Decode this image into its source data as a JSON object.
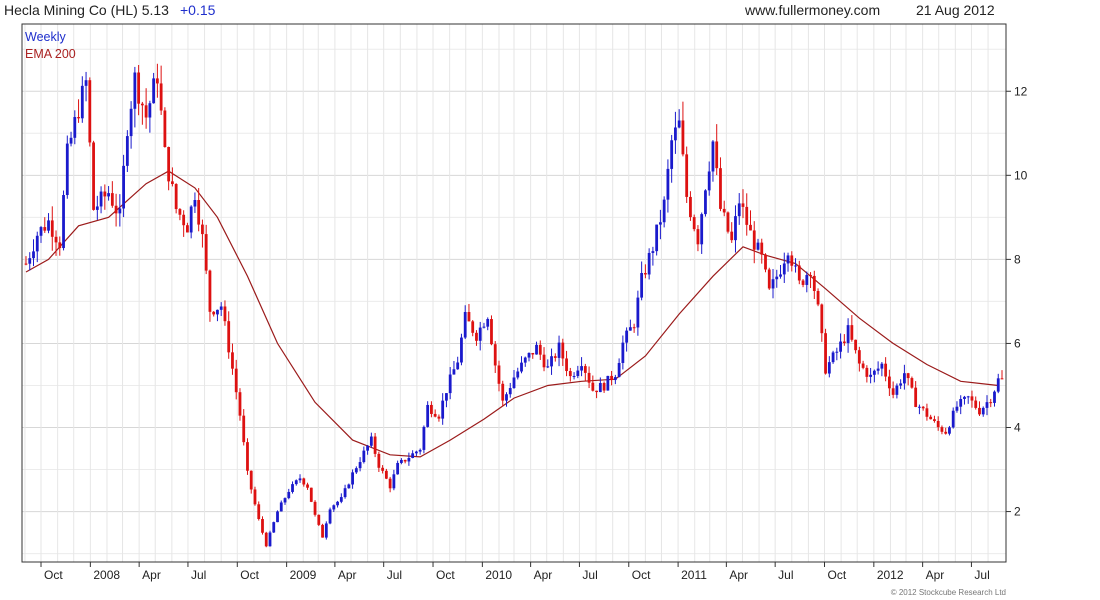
{
  "header": {
    "title": "Hecla Mining Co (HL) 5.13",
    "change": "+0.15",
    "site": "www.fullermoney.com",
    "date": "21 Aug 2012"
  },
  "legend": {
    "series1": "Weekly",
    "series2": "EMA 200"
  },
  "footer": {
    "copyright": "© 2012 Stockcube Research Ltd"
  },
  "colors": {
    "up": "#1a1acc",
    "down": "#dd1111",
    "ema": "#9b1b1b",
    "grid": "#d7d7d7",
    "legend_weekly": "#1f2fcc",
    "legend_ema": "#aa2222"
  },
  "chart_data": {
    "type": "candlestick",
    "frequency": "weekly",
    "ylim": [
      0.8,
      13.6
    ],
    "y_ticks": [
      2,
      4,
      6,
      8,
      10,
      12
    ],
    "y_axis_side": "right",
    "grid": true,
    "legend_placement": "top-left",
    "x_tick_labels": [
      "Oct",
      "2008",
      "Apr",
      "Jul",
      "Oct",
      "2009",
      "Apr",
      "Jul",
      "Oct",
      "2010",
      "Apr",
      "Jul",
      "Oct",
      "2011",
      "Apr",
      "Jul",
      "Oct",
      "2012",
      "Apr",
      "Jul"
    ],
    "x_tick_dates": [
      "2007-10-01",
      "2008-01-01",
      "2008-04-01",
      "2008-07-01",
      "2008-10-01",
      "2009-01-01",
      "2009-04-01",
      "2009-07-01",
      "2009-10-01",
      "2010-01-01",
      "2010-04-01",
      "2010-07-01",
      "2010-10-01",
      "2011-01-01",
      "2011-04-01",
      "2011-07-01",
      "2011-10-01",
      "2012-01-01",
      "2012-04-01",
      "2012-07-01"
    ],
    "x_range": [
      "2007-09-03",
      "2012-08-27"
    ],
    "price_path": [
      [
        "2007-09-03",
        7.9
      ],
      [
        "2007-09-24",
        8.6
      ],
      [
        "2007-10-15",
        8.9
      ],
      [
        "2007-11-05",
        8.4
      ],
      [
        "2007-11-19",
        10.5
      ],
      [
        "2007-12-10",
        11.6
      ],
      [
        "2007-12-24",
        12.2
      ],
      [
        "2008-01-07",
        9.2
      ],
      [
        "2008-02-04",
        9.6
      ],
      [
        "2008-02-25",
        9.0
      ],
      [
        "2008-03-10",
        11.2
      ],
      [
        "2008-03-24",
        12.3
      ],
      [
        "2008-04-14",
        11.4
      ],
      [
        "2008-05-05",
        12.4
      ],
      [
        "2008-05-19",
        10.5
      ],
      [
        "2008-06-09",
        9.2
      ],
      [
        "2008-06-30",
        8.8
      ],
      [
        "2008-07-14",
        9.6
      ],
      [
        "2008-07-28",
        8.5
      ],
      [
        "2008-08-11",
        6.8
      ],
      [
        "2008-09-01",
        6.9
      ],
      [
        "2008-09-22",
        5.4
      ],
      [
        "2008-10-06",
        4.3
      ],
      [
        "2008-10-20",
        2.9
      ],
      [
        "2008-11-10",
        1.8
      ],
      [
        "2008-11-24",
        1.2
      ],
      [
        "2008-12-15",
        2.0
      ],
      [
        "2009-01-05",
        2.5
      ],
      [
        "2009-01-26",
        2.8
      ],
      [
        "2009-02-09",
        2.6
      ],
      [
        "2009-02-23",
        1.9
      ],
      [
        "2009-03-09",
        1.4
      ],
      [
        "2009-03-23",
        2.1
      ],
      [
        "2009-04-13",
        2.3
      ],
      [
        "2009-05-04",
        2.9
      ],
      [
        "2009-05-25",
        3.4
      ],
      [
        "2009-06-08",
        3.7
      ],
      [
        "2009-06-22",
        3.1
      ],
      [
        "2009-07-13",
        2.6
      ],
      [
        "2009-07-27",
        3.1
      ],
      [
        "2009-08-17",
        3.3
      ],
      [
        "2009-09-07",
        3.5
      ],
      [
        "2009-09-21",
        4.5
      ],
      [
        "2009-10-12",
        4.3
      ],
      [
        "2009-10-26",
        4.9
      ],
      [
        "2009-11-16",
        5.6
      ],
      [
        "2009-11-30",
        6.6
      ],
      [
        "2009-12-21",
        6.2
      ],
      [
        "2010-01-11",
        6.7
      ],
      [
        "2010-01-25",
        5.5
      ],
      [
        "2010-02-08",
        4.6
      ],
      [
        "2010-03-01",
        5.2
      ],
      [
        "2010-03-22",
        5.6
      ],
      [
        "2010-04-12",
        5.9
      ],
      [
        "2010-05-03",
        5.4
      ],
      [
        "2010-05-24",
        5.9
      ],
      [
        "2010-06-14",
        5.2
      ],
      [
        "2010-07-05",
        5.6
      ],
      [
        "2010-07-26",
        4.9
      ],
      [
        "2010-08-16",
        5.0
      ],
      [
        "2010-09-06",
        5.3
      ],
      [
        "2010-09-20",
        6.0
      ],
      [
        "2010-10-11",
        6.5
      ],
      [
        "2010-10-25",
        7.5
      ],
      [
        "2010-11-15",
        8.3
      ],
      [
        "2010-12-06",
        9.3
      ],
      [
        "2010-12-20",
        10.8
      ],
      [
        "2011-01-03",
        11.2
      ],
      [
        "2011-01-17",
        9.5
      ],
      [
        "2011-02-07",
        8.5
      ],
      [
        "2011-02-21",
        9.8
      ],
      [
        "2011-03-07",
        10.8
      ],
      [
        "2011-03-21",
        9.2
      ],
      [
        "2011-04-11",
        8.4
      ],
      [
        "2011-04-25",
        9.4
      ],
      [
        "2011-05-16",
        8.6
      ],
      [
        "2011-06-06",
        8.0
      ],
      [
        "2011-06-20",
        7.2
      ],
      [
        "2011-07-11",
        7.8
      ],
      [
        "2011-07-25",
        8.3
      ],
      [
        "2011-08-15",
        7.4
      ],
      [
        "2011-09-05",
        7.8
      ],
      [
        "2011-09-19",
        6.8
      ],
      [
        "2011-10-03",
        5.4
      ],
      [
        "2011-10-24",
        5.8
      ],
      [
        "2011-11-14",
        6.3
      ],
      [
        "2011-12-05",
        5.5
      ],
      [
        "2011-12-26",
        5.2
      ],
      [
        "2012-01-16",
        5.5
      ],
      [
        "2012-02-06",
        4.8
      ],
      [
        "2012-02-27",
        5.3
      ],
      [
        "2012-03-19",
        4.6
      ],
      [
        "2012-04-09",
        4.3
      ],
      [
        "2012-04-30",
        4.0
      ],
      [
        "2012-05-14",
        3.9
      ],
      [
        "2012-06-04",
        4.5
      ],
      [
        "2012-06-25",
        4.7
      ],
      [
        "2012-07-16",
        4.4
      ],
      [
        "2012-08-06",
        4.7
      ],
      [
        "2012-08-20",
        5.13
      ]
    ],
    "ema_path": [
      [
        "2007-09-03",
        7.7
      ],
      [
        "2007-10-15",
        8.0
      ],
      [
        "2007-12-10",
        8.8
      ],
      [
        "2008-02-04",
        9.0
      ],
      [
        "2008-04-14",
        9.8
      ],
      [
        "2008-05-26",
        10.1
      ],
      [
        "2008-07-14",
        9.7
      ],
      [
        "2008-08-25",
        9.0
      ],
      [
        "2008-10-20",
        7.6
      ],
      [
        "2008-12-15",
        6.0
      ],
      [
        "2009-02-23",
        4.6
      ],
      [
        "2009-05-04",
        3.7
      ],
      [
        "2009-07-13",
        3.35
      ],
      [
        "2009-09-07",
        3.3
      ],
      [
        "2009-11-02",
        3.7
      ],
      [
        "2010-01-04",
        4.2
      ],
      [
        "2010-03-01",
        4.7
      ],
      [
        "2010-05-03",
        5.0
      ],
      [
        "2010-07-05",
        5.1
      ],
      [
        "2010-09-06",
        5.15
      ],
      [
        "2010-11-01",
        5.7
      ],
      [
        "2011-01-03",
        6.7
      ],
      [
        "2011-03-07",
        7.6
      ],
      [
        "2011-05-02",
        8.3
      ],
      [
        "2011-06-13",
        8.1
      ],
      [
        "2011-08-08",
        7.9
      ],
      [
        "2011-10-03",
        7.3
      ],
      [
        "2011-12-05",
        6.6
      ],
      [
        "2012-02-06",
        6.0
      ],
      [
        "2012-04-09",
        5.5
      ],
      [
        "2012-06-11",
        5.1
      ],
      [
        "2012-08-20",
        5.0
      ]
    ]
  }
}
